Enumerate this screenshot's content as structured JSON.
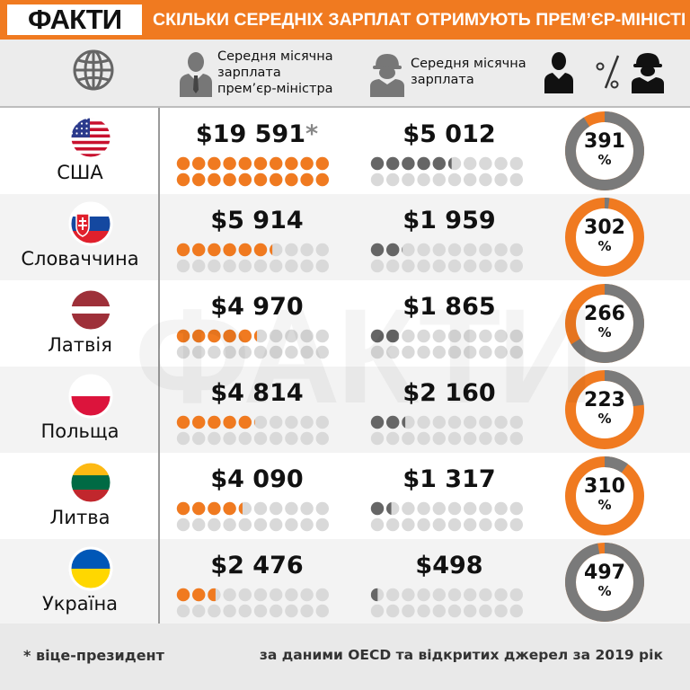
{
  "brand": {
    "logo": "ФАКТИ",
    "watermark": "ФАКТИ"
  },
  "title": "СКІЛЬКИ СЕРЕДНІХ ЗАРПЛАТ ОТРИМУЮТЬ ПРЕМ’ЄР-МІНІСТРИ?",
  "header": {
    "col_pm": "Середня місячна зарплата прем’єр-міністра",
    "col_avg": "Середня місячна зарплата",
    "icons": [
      "globe-icon",
      "businessman-icon",
      "worker-icon",
      "ratio-icon"
    ]
  },
  "colors": {
    "accent": "#f07a20",
    "gray_dot": "#666666",
    "empty_dot": "#d9d9d9",
    "ring_gray": "#7a7a7a"
  },
  "chart_data": {
    "type": "table",
    "series": [
      {
        "name": "Середня місячна зарплата прем’єр-міністра",
        "values": [
          19591,
          5914,
          4970,
          4814,
          4090,
          2476
        ]
      },
      {
        "name": "Середня місячна зарплата",
        "values": [
          5012,
          1959,
          1865,
          2160,
          1317,
          498
        ]
      }
    ],
    "rows": [
      {
        "country": "США",
        "flag": "us",
        "pm_label": "$19 591",
        "pm_note": "*",
        "pm": 19591,
        "avg_label": "$5 012",
        "avg": 5012,
        "ratio": "391",
        "ratio_unit": "%"
      },
      {
        "country": "Словаччина",
        "flag": "sk",
        "pm_label": "$5 914",
        "pm_note": "",
        "pm": 5914,
        "avg_label": "$1 959",
        "avg": 1959,
        "ratio": "302",
        "ratio_unit": "%"
      },
      {
        "country": "Латвія",
        "flag": "lv",
        "pm_label": "$4 970",
        "pm_note": "",
        "pm": 4970,
        "avg_label": "$1 865",
        "avg": 1865,
        "ratio": "266",
        "ratio_unit": "%"
      },
      {
        "country": "Польща",
        "flag": "pl",
        "pm_label": "$4 814",
        "pm_note": "",
        "pm": 4814,
        "avg_label": "$2 160",
        "avg": 2160,
        "ratio": "223",
        "ratio_unit": "%"
      },
      {
        "country": "Литва",
        "flag": "lt",
        "pm_label": "$4 090",
        "pm_note": "",
        "pm": 4090,
        "avg_label": "$1 317",
        "avg": 1317,
        "ratio": "310",
        "ratio_unit": "%"
      },
      {
        "country": "Україна",
        "flag": "ua",
        "pm_label": "$2 476",
        "pm_note": "",
        "pm": 2476,
        "avg_label": "$498",
        "avg": 498,
        "ratio": "497",
        "ratio_unit": "%"
      }
    ]
  },
  "footer": {
    "note": "* віце-президент",
    "source": "за даними OECD та відкритих джерел за 2019 рік"
  }
}
